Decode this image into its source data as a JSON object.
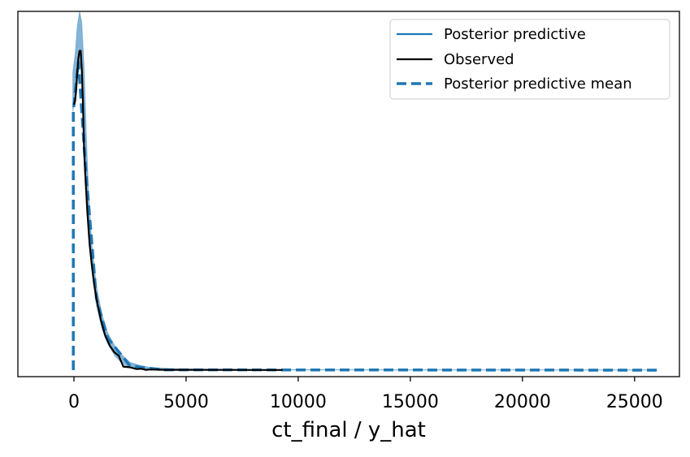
{
  "chart_data": {
    "type": "line",
    "title": "",
    "xlabel": "ct_final / y_hat",
    "ylabel": "",
    "xlim": [
      -2500,
      27000
    ],
    "ylim": [
      -0.018,
      1.0
    ],
    "grid": false,
    "y_ticks_shown": false,
    "legend_placement": "top-right",
    "x_ticks": [
      0,
      5000,
      10000,
      15000,
      20000,
      25000
    ],
    "x_tick_labels": [
      "0",
      "5000",
      "10000",
      "15000",
      "20000",
      "25000"
    ],
    "legend": [
      {
        "label": "Posterior predictive",
        "style": "solid",
        "color": "#1f77b4"
      },
      {
        "label": "Observed",
        "style": "solid",
        "color": "#000000"
      },
      {
        "label": "Posterior predictive mean",
        "style": "dashed",
        "color": "#1f77b4"
      }
    ],
    "series": [
      {
        "name": "Posterior predictive",
        "color": "#1f77b4",
        "style": "band",
        "x": [
          -50,
          50,
          150,
          250,
          350,
          450,
          550,
          650,
          800,
          1000,
          1250,
          1500,
          1800,
          2100,
          2500,
          3000,
          3500,
          4500,
          6000,
          9000,
          12000,
          18000,
          26000
        ],
        "lower": [
          0.72,
          0.76,
          0.82,
          0.86,
          0.83,
          0.71,
          0.55,
          0.42,
          0.29,
          0.18,
          0.115,
          0.075,
          0.042,
          0.022,
          0.006,
          0.003,
          0.002,
          0.001,
          0.001,
          0.0005,
          0.0003,
          0.0002,
          0.0
        ],
        "upper": [
          0.83,
          0.88,
          0.96,
          1.0,
          0.97,
          0.85,
          0.66,
          0.5,
          0.35,
          0.235,
          0.155,
          0.105,
          0.07,
          0.045,
          0.022,
          0.012,
          0.007,
          0.004,
          0.003,
          0.002,
          0.0015,
          0.001,
          0.0008
        ]
      },
      {
        "name": "Observed",
        "color": "#000000",
        "style": "solid",
        "x": [
          0,
          50,
          100,
          150,
          200,
          250,
          300,
          350,
          400,
          450,
          500,
          600,
          700,
          800,
          900,
          1000,
          1200,
          1400,
          1600,
          1800,
          2000,
          2100,
          2200,
          2500,
          2800,
          3000,
          3200,
          3400,
          3700,
          4000,
          5000,
          6000,
          7000,
          8000,
          9000,
          9300
        ],
        "y": [
          0.74,
          0.75,
          0.78,
          0.83,
          0.87,
          0.89,
          0.89,
          0.84,
          0.75,
          0.62,
          0.55,
          0.44,
          0.35,
          0.29,
          0.24,
          0.2,
          0.14,
          0.095,
          0.068,
          0.05,
          0.04,
          0.025,
          0.01,
          0.008,
          0.003,
          0.004,
          0.001,
          0.002,
          0.0015,
          0.001,
          0.001,
          0.0008,
          0.0008,
          0.0006,
          0.0005,
          0.0005
        ]
      },
      {
        "name": "Posterior predictive mean",
        "color": "#1f77b4",
        "style": "dashed",
        "x": [
          -30,
          -30,
          30,
          200,
          500,
          1000,
          1500,
          2500,
          4000,
          26000
        ],
        "y": [
          0.0,
          0.72,
          0.76,
          0.86,
          0.58,
          0.2,
          0.09,
          0.012,
          0.001,
          0.0
        ]
      }
    ]
  }
}
